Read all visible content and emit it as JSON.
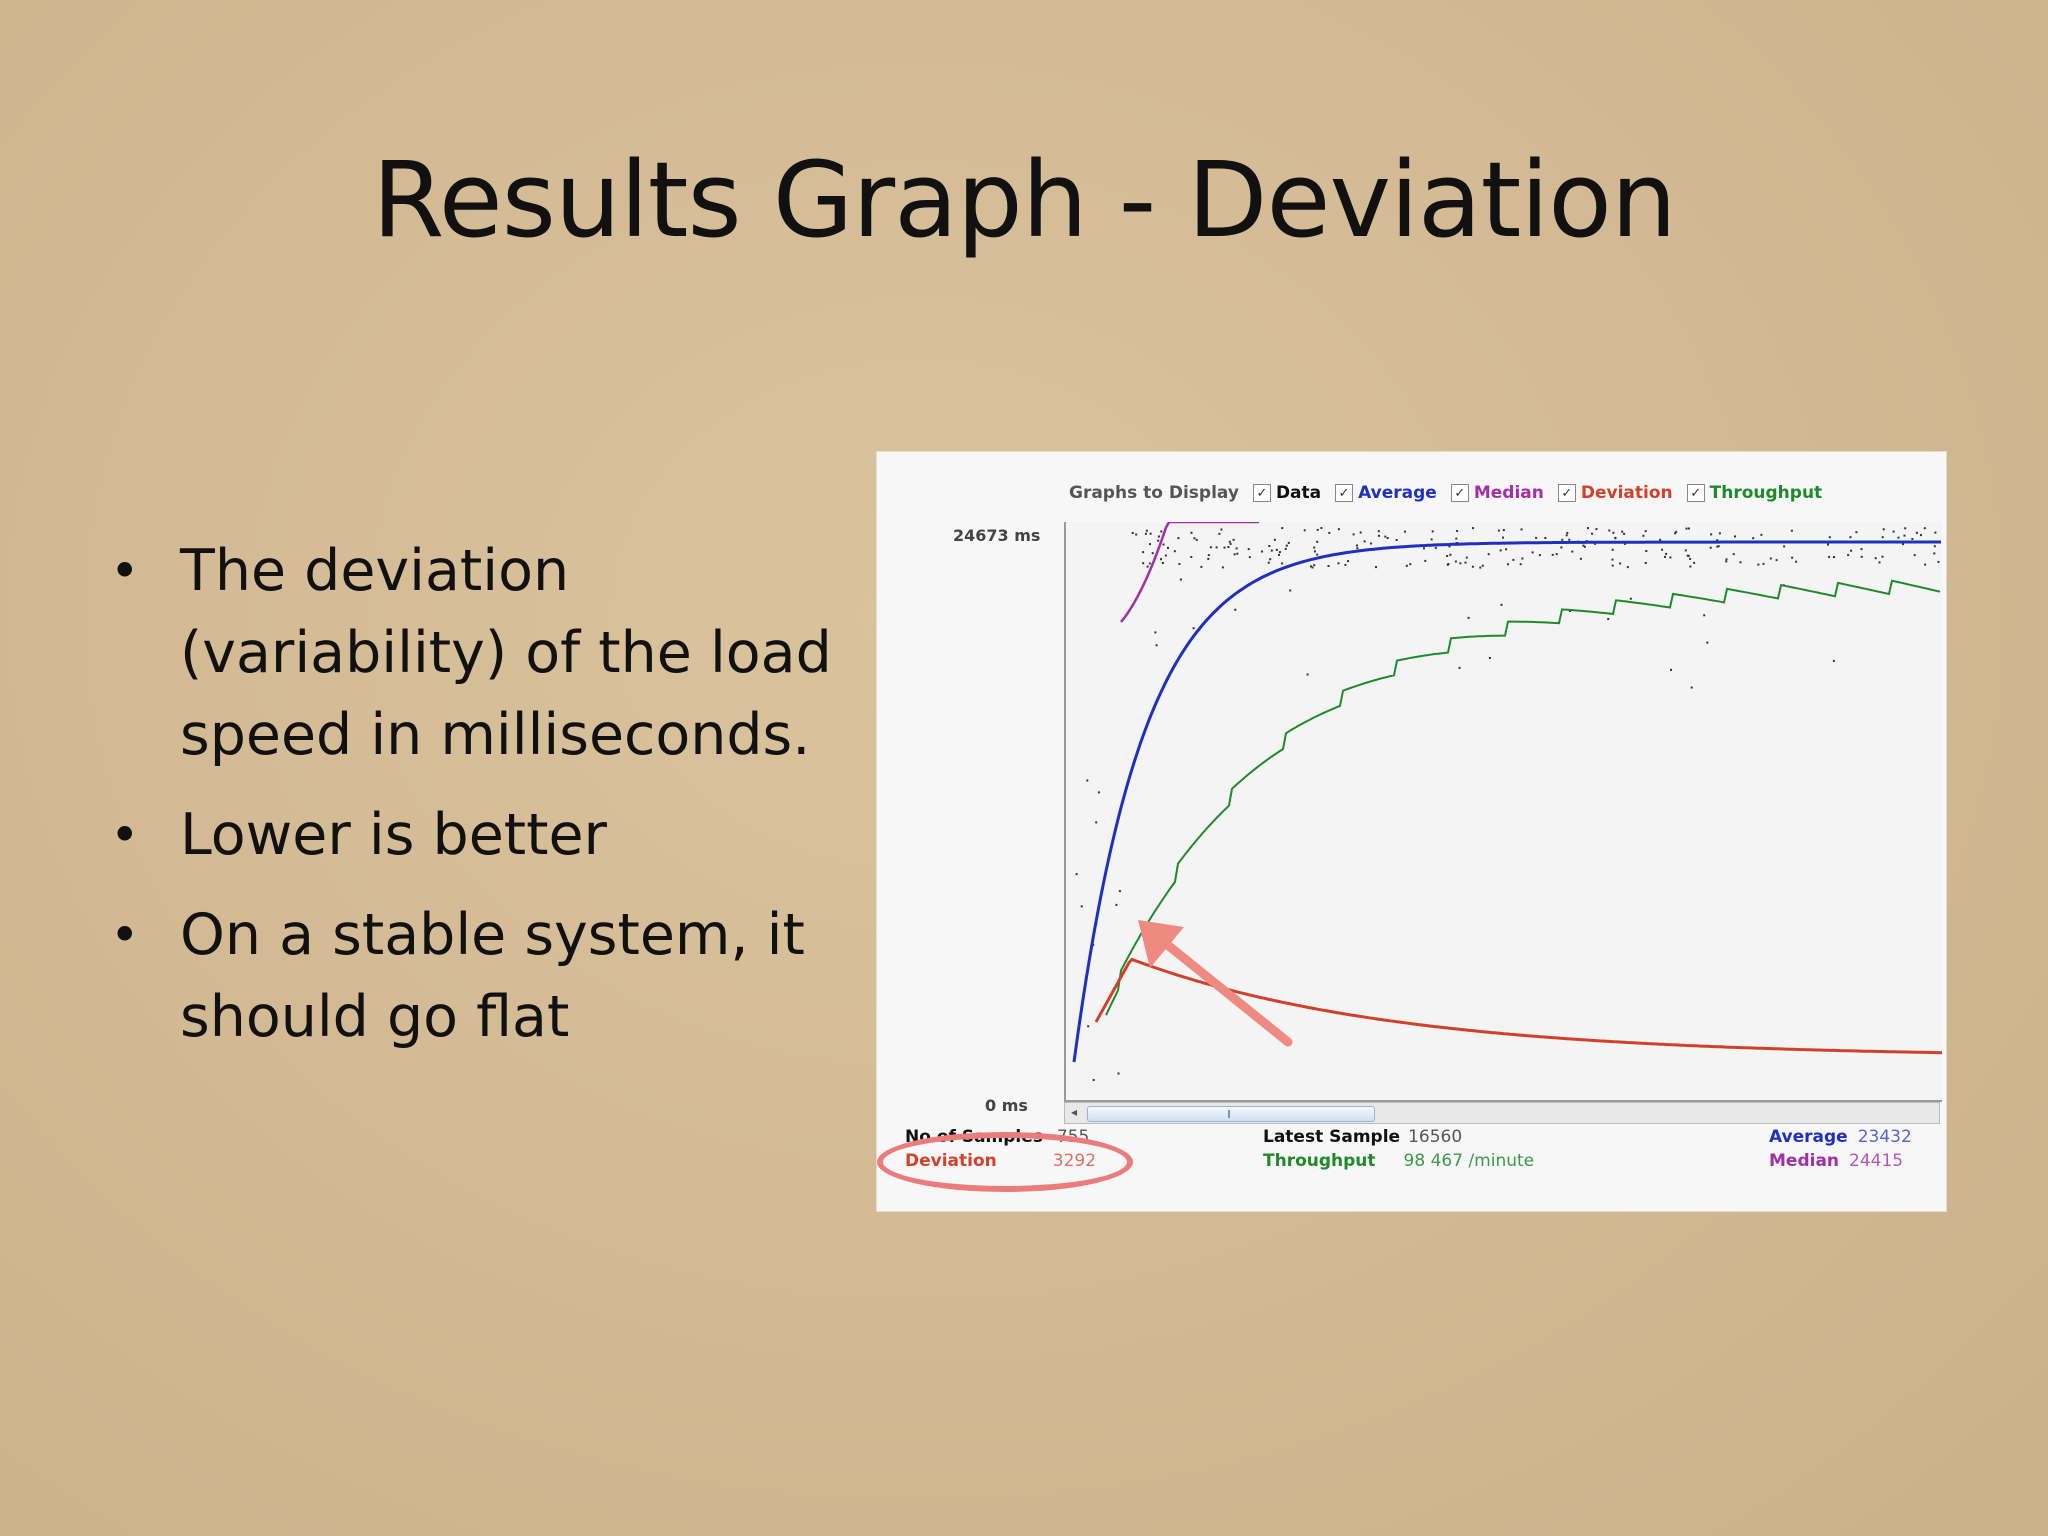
{
  "slide": {
    "title": "Results Graph - Deviation",
    "bullets": [
      "The deviation (variability) of the load speed in milliseconds.",
      "Lower is better",
      "On a stable system, it should go flat"
    ]
  },
  "graph": {
    "legend_label": "Graphs to Display",
    "checkboxes": [
      {
        "label": "Data",
        "checked": true,
        "color": "#000000"
      },
      {
        "label": "Average",
        "checked": true,
        "color": "#1f2fbf"
      },
      {
        "label": "Median",
        "checked": true,
        "color": "#a12fa8"
      },
      {
        "label": "Deviation",
        "checked": true,
        "color": "#d2402a"
      },
      {
        "label": "Throughput",
        "checked": true,
        "color": "#1e8a2a"
      }
    ],
    "y_max_label": "24673 ms",
    "y_min_label": "0 ms",
    "stats": {
      "samples_label": "No of Samples",
      "samples_value": "755",
      "latest_label": "Latest Sample",
      "latest_value": "16560",
      "average_label": "Average",
      "average_value": "23432",
      "deviation_label": "Deviation",
      "deviation_value": "3292",
      "throughput_label": "Throughput",
      "throughput_value": "98 467 /minute",
      "median_label": "Median",
      "median_value": "24415"
    },
    "colors": {
      "average": "#1f2fbf",
      "median": "#a12fa8",
      "deviation": "#d2402a",
      "throughput": "#1e8a2a",
      "arrow": "#ee8a80",
      "highlight": "#ec7c7c"
    }
  }
}
